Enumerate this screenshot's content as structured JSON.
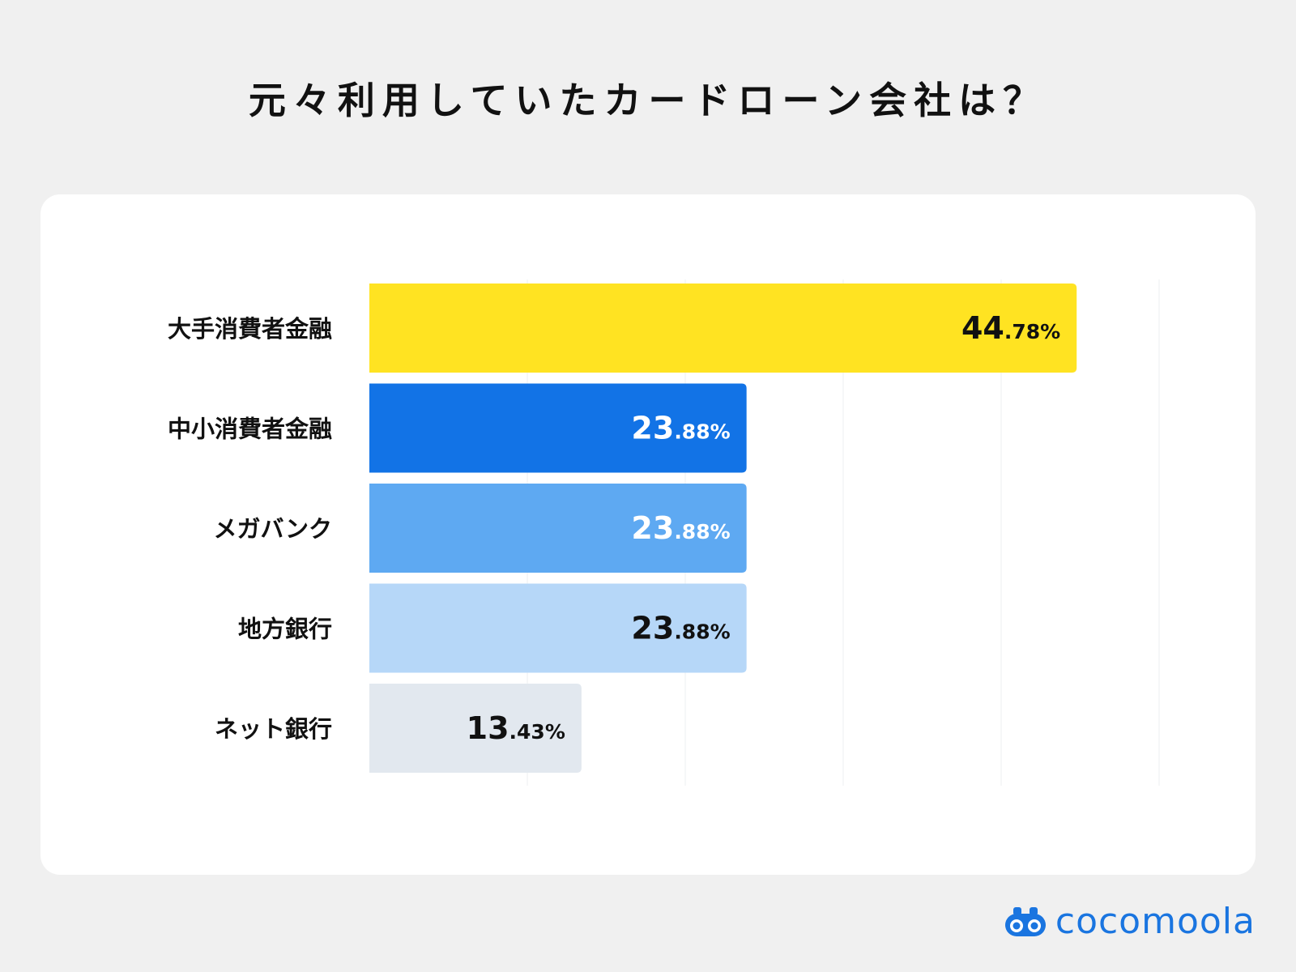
{
  "title": "元々利用していたカードローン会社は？",
  "brand": {
    "name": "cocomoola",
    "logo_icon": "binoculars-logo-icon",
    "color": "#1a75e0"
  },
  "chart_data": {
    "type": "bar",
    "orientation": "horizontal",
    "title": "元々利用していたカードローン会社は？",
    "xlabel": "",
    "ylabel": "",
    "unit": "%",
    "xlim": [
      0,
      50
    ],
    "grid": true,
    "categories": [
      "大手消費者金融",
      "中小消費者金融",
      "メガバンク",
      "地方銀行",
      "ネット銀行"
    ],
    "values": [
      44.78,
      23.88,
      23.88,
      23.88,
      13.43
    ],
    "labels": [
      {
        "major": "44",
        "minor": ".78%"
      },
      {
        "major": "23",
        "minor": ".88%"
      },
      {
        "major": "23",
        "minor": ".88%"
      },
      {
        "major": "23",
        "minor": ".88%"
      },
      {
        "major": "13",
        "minor": ".43%"
      }
    ],
    "bar_colors": [
      "#ffe322",
      "#1273e6",
      "#5ea9f2",
      "#b6d7f8",
      "#e2e8ef"
    ],
    "label_colors": [
      "#111111",
      "#ffffff",
      "#ffffff",
      "#111111",
      "#111111"
    ]
  }
}
